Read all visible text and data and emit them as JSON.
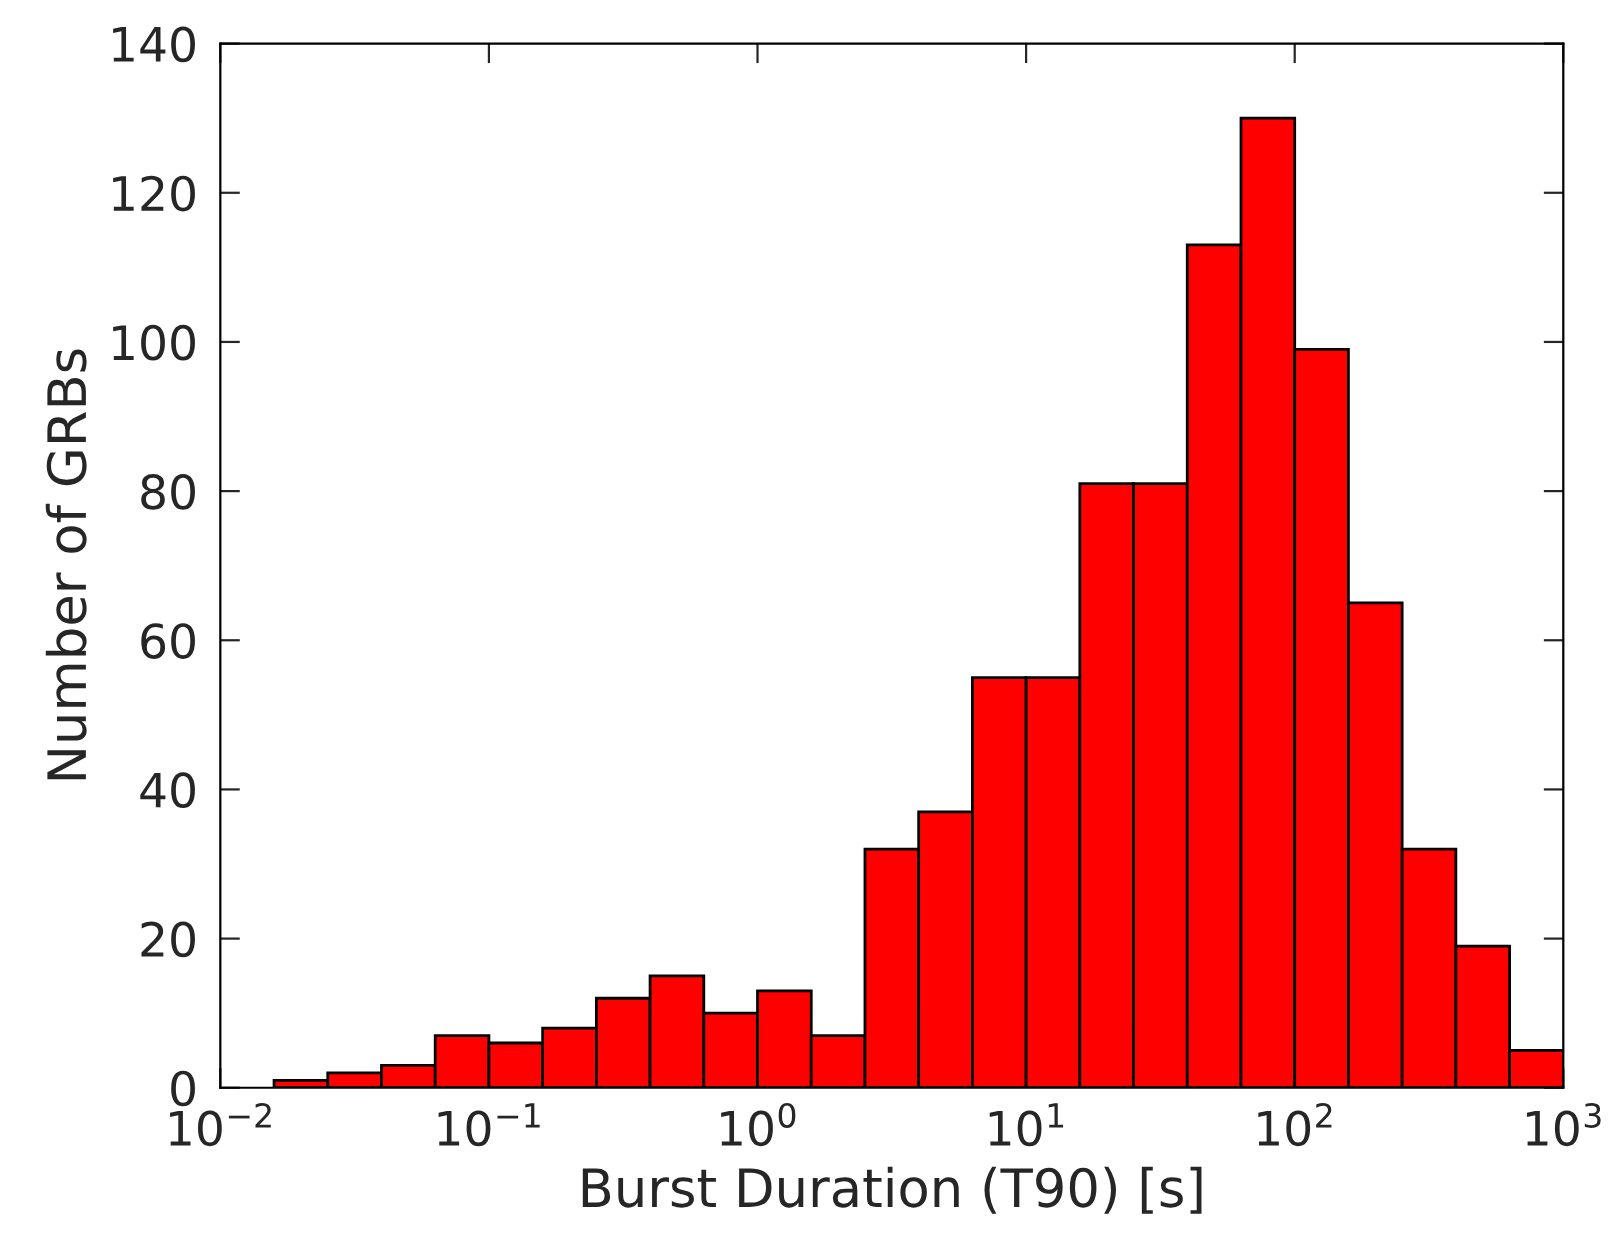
{
  "chart_data": {
    "type": "histogram",
    "xlabel": "Burst Duration (T90) [s]",
    "ylabel": "Number of GRBs",
    "log": "x",
    "color": "#ff0000",
    "bins": [
      0.01585,
      0.02512,
      0.03981,
      0.0631,
      0.1,
      0.1585,
      0.2512,
      0.3981,
      0.631,
      1,
      1.585,
      2.512,
      3.981,
      6.31,
      10,
      15.85,
      25.12,
      39.81,
      63.1,
      100,
      158.5,
      251.2,
      398.1,
      631,
      1000
    ],
    "values": [
      1,
      2,
      3,
      7,
      6,
      8,
      12,
      15,
      10,
      13,
      7,
      32,
      37,
      55,
      55,
      81,
      81,
      113,
      130,
      99,
      65,
      32,
      19,
      5
    ],
    "xlim": [
      0.01,
      1000
    ],
    "xticks": [
      {
        "value": 0.01,
        "label": "10$^{−2}$"
      },
      {
        "value": 0.1,
        "label": "10$^{−1}$"
      },
      {
        "value": 1,
        "label": "10$^{0}$"
      },
      {
        "value": 10,
        "label": "10$^{1}$"
      },
      {
        "value": 100,
        "label": "10$^{2}$"
      },
      {
        "value": 1000,
        "label": "10$^{3}$"
      }
    ],
    "ylim": [
      0,
      140
    ],
    "yticks": [
      0,
      20,
      40,
      60,
      80,
      100,
      120,
      140
    ],
    "grid": false
  }
}
